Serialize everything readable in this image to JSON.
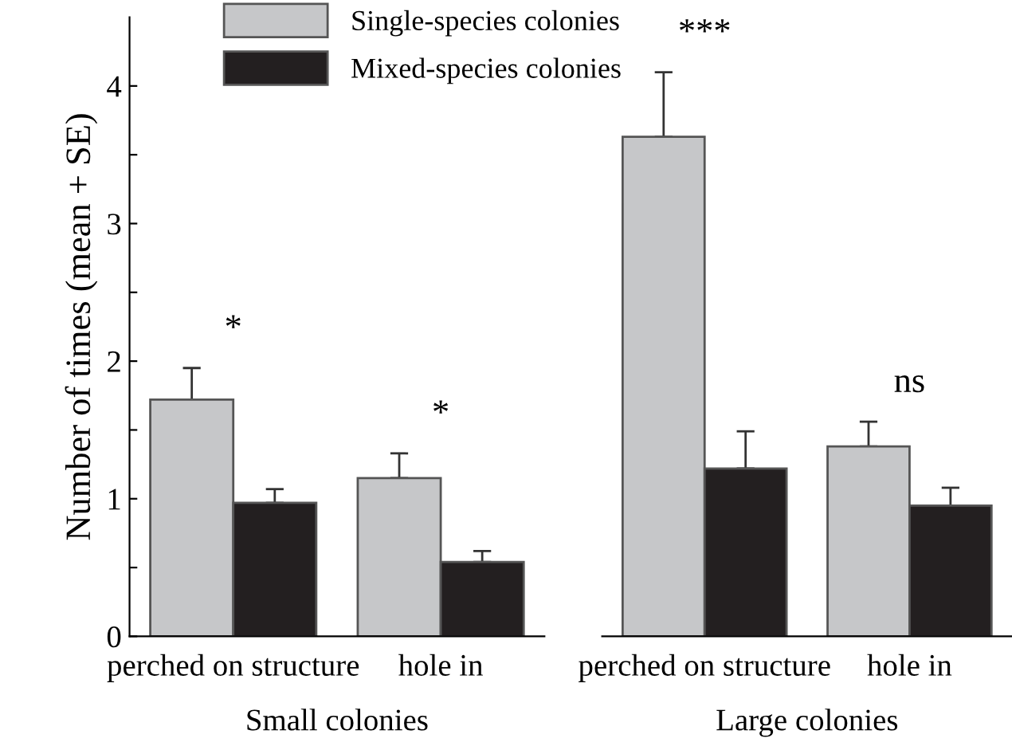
{
  "chart_data": [
    {
      "type": "bar",
      "xlabel": "Small colonies",
      "ylabel": "Number of times (mean + SE)",
      "categories": [
        "perched on structure",
        "hole in"
      ],
      "series": [
        {
          "name": "Single-species colonies",
          "color": "#c6c7c9",
          "values": [
            1.72,
            1.15
          ],
          "errors": [
            [
              1.72,
              1.95
            ],
            [
              1.15,
              1.33
            ]
          ]
        },
        {
          "name": "Mixed-species colonies",
          "color": "#231f20",
          "values": [
            0.97,
            0.54
          ],
          "errors": [
            [
              0.97,
              1.07
            ],
            [
              0.54,
              0.62
            ]
          ]
        }
      ],
      "ylim": [
        0,
        4.5
      ],
      "yticks": [
        0,
        {
          "value": 0.5,
          "label": null
        },
        1,
        {
          "value": 1.5,
          "label": null
        },
        2,
        {
          "value": 2.5,
          "label": null
        },
        3,
        {
          "value": 3.5,
          "label": null
        },
        4
      ],
      "annotations": [
        "*",
        "*"
      ],
      "legend": "top",
      "grid": false
    },
    {
      "type": "bar",
      "xlabel": "Large colonies",
      "categories": [
        "perched on structure",
        "hole in"
      ],
      "series": [
        {
          "color": "#c6c7c9",
          "values": [
            3.63,
            1.38
          ],
          "errors": [
            [
              3.63,
              4.1
            ],
            [
              1.38,
              1.56
            ]
          ]
        },
        {
          "color": "#231f20",
          "values": [
            1.22,
            0.95
          ],
          "errors": [
            [
              1.22,
              1.49
            ],
            [
              0.95,
              1.08
            ]
          ]
        }
      ],
      "yticks": [
        0,
        1,
        2,
        3,
        4
      ],
      "tick_labels": "x",
      "annotations": [
        "***",
        "ns"
      ],
      "grid": false
    }
  ]
}
